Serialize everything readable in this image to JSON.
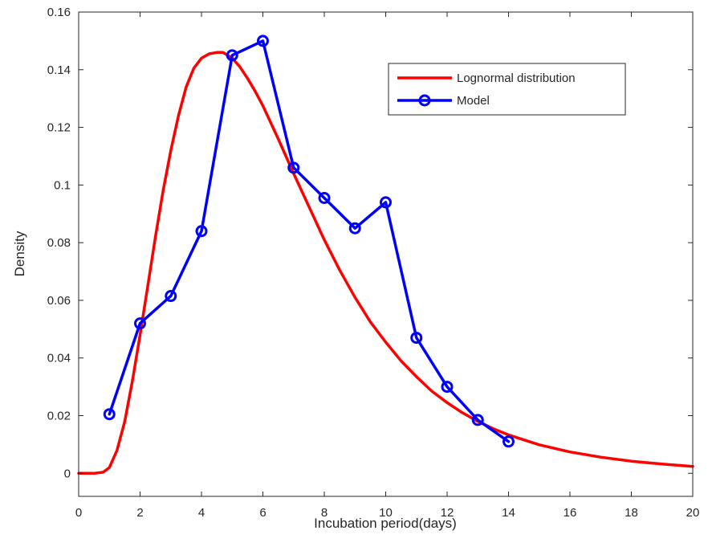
{
  "chart_data": {
    "type": "line",
    "title": "",
    "xlabel": "Incubation period(days)",
    "ylabel": "Density",
    "xlim": [
      0,
      20
    ],
    "ylim": [
      -0.008,
      0.16
    ],
    "xticks": [
      0,
      2,
      4,
      6,
      8,
      10,
      12,
      14,
      16,
      18,
      20
    ],
    "xtick_labels": [
      "0",
      "2",
      "4",
      "6",
      "8",
      "10",
      "12",
      "14",
      "16",
      "18",
      "20"
    ],
    "yticks": [
      0,
      0.02,
      0.04,
      0.06,
      0.08,
      0.1,
      0.12,
      0.14,
      0.16
    ],
    "ytick_labels": [
      "0",
      "0.02",
      "0.04",
      "0.06",
      "0.08",
      "0.1",
      "0.12",
      "0.14",
      "0.16"
    ],
    "grid": false,
    "box": true,
    "legend_position": "top-right",
    "series": [
      {
        "name": "Lognormal distribution",
        "color": "#ff0000",
        "marker": "none",
        "x": [
          0,
          0.5,
          0.8,
          1,
          1.25,
          1.5,
          1.75,
          2,
          2.25,
          2.5,
          2.75,
          3,
          3.25,
          3.5,
          3.75,
          4,
          4.25,
          4.5,
          4.7,
          5,
          5.25,
          5.5,
          5.75,
          6,
          6.5,
          7,
          7.5,
          8,
          8.5,
          9,
          9.5,
          10,
          10.5,
          11,
          11.5,
          12,
          12.5,
          13,
          13.5,
          14,
          15,
          16,
          17,
          18,
          19,
          20
        ],
        "y": [
          0,
          0,
          0.0004,
          0.002,
          0.008,
          0.018,
          0.032,
          0.048,
          0.065,
          0.082,
          0.098,
          0.112,
          0.124,
          0.134,
          0.1405,
          0.144,
          0.1455,
          0.146,
          0.146,
          0.144,
          0.141,
          0.137,
          0.1325,
          0.1275,
          0.116,
          0.104,
          0.0925,
          0.081,
          0.0705,
          0.061,
          0.0525,
          0.0455,
          0.039,
          0.0335,
          0.0285,
          0.0245,
          0.021,
          0.018,
          0.0155,
          0.0133,
          0.0099,
          0.0074,
          0.0056,
          0.0042,
          0.0032,
          0.0024
        ]
      },
      {
        "name": "Model",
        "color": "#0000ff",
        "marker": "circle",
        "x": [
          1,
          2,
          3,
          4,
          5,
          6,
          7,
          8,
          9,
          10,
          11,
          12,
          13,
          14
        ],
        "y": [
          0.0205,
          0.052,
          0.0615,
          0.084,
          0.145,
          0.15,
          0.106,
          0.0955,
          0.085,
          0.094,
          0.047,
          0.03,
          0.0185,
          0.011
        ]
      }
    ]
  }
}
